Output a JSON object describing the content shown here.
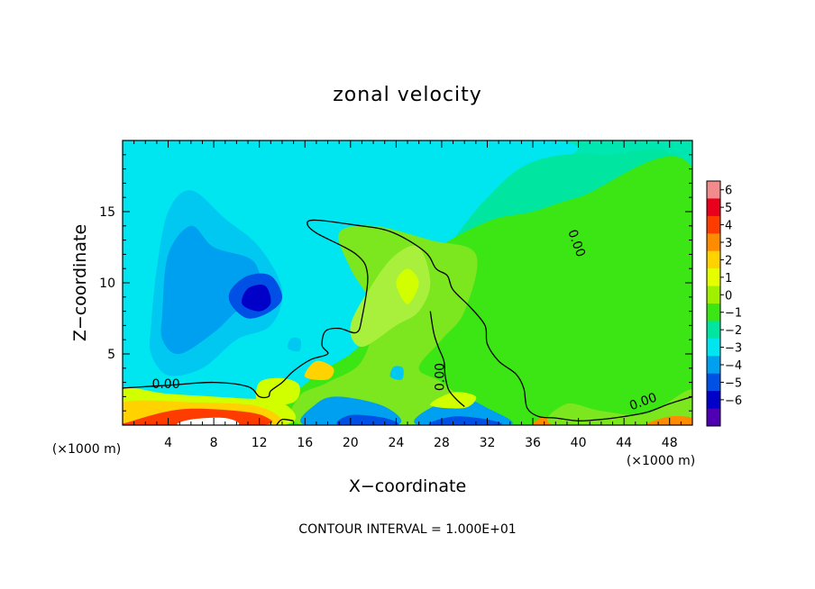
{
  "chart_data": {
    "type": "heatmap",
    "title": "zonal velocity",
    "xlabel": "X−coordinate",
    "ylabel": "Z−coordinate",
    "x_unit_left": "(×1000 m)",
    "x_unit_right": "(×1000 m)",
    "footer": "CONTOUR INTERVAL = 1.000E+01",
    "xlim": [
      0,
      50
    ],
    "ylim": [
      0,
      20
    ],
    "x_ticks": [
      4,
      8,
      12,
      16,
      20,
      24,
      28,
      32,
      36,
      40,
      44,
      48
    ],
    "y_ticks": [
      5,
      10,
      15
    ],
    "contour_label": "0.00",
    "colorbar": {
      "levels": [
        6,
        5,
        4,
        3,
        2,
        1,
        0,
        -1,
        -2,
        -3,
        -4,
        -5,
        -6
      ],
      "colors": [
        "#f28c8c",
        "#e8001c",
        "#ff3c00",
        "#ff8c00",
        "#ffd200",
        "#e6ff00",
        "#a0f000",
        "#3ce614",
        "#00e6a0",
        "#00e6f0",
        "#00a0f0",
        "#0050e6",
        "#0000c8",
        "#5000b4"
      ]
    },
    "color_map": {
      "1.1": "#a8f03c",
      "0.6": "#7ce61e",
      "0.2": "#3ce614",
      "-0.4": "#00e6a0",
      "-1.1": "#00e6f0",
      "-2.1": "#00c8f0",
      "-2.6": "#00a0f0",
      "-3.6": "#0050e6",
      "1.6": "#d2ff00",
      "2.4": "#ffd200",
      "3.3": "#ff8c00",
      "3.9": "#ff3c00",
      "4.6": "#e8001c",
      "6": "#ffffff",
      "-4.6": "#0000c8"
    },
    "regions": [
      {
        "v": -1.1,
        "pts": [
          [
            0,
            2
          ],
          [
            8,
            1
          ],
          [
            12,
            1.5
          ],
          [
            16,
            2
          ],
          [
            20,
            4
          ],
          [
            24,
            6
          ],
          [
            28,
            10
          ],
          [
            30,
            14
          ],
          [
            34,
            17
          ],
          [
            38,
            20
          ],
          [
            0,
            20
          ]
        ]
      },
      {
        "v": -0.4,
        "pts": [
          [
            13,
            0.5
          ],
          [
            20,
            5
          ],
          [
            24,
            8
          ],
          [
            28,
            12
          ],
          [
            32,
            16
          ],
          [
            36,
            18.5
          ],
          [
            42,
            19
          ],
          [
            50,
            17.5
          ],
          [
            50,
            0
          ],
          [
            13,
            0
          ]
        ]
      },
      {
        "v": -2.1,
        "pts": [
          [
            2.5,
            5
          ],
          [
            4,
            3.5
          ],
          [
            7,
            4
          ],
          [
            10,
            6
          ],
          [
            13,
            7
          ],
          [
            14,
            9.5
          ],
          [
            12,
            12.5
          ],
          [
            9,
            14.5
          ],
          [
            6,
            16.5
          ],
          [
            4,
            15
          ],
          [
            3,
            11
          ],
          [
            2.5,
            7
          ]
        ]
      },
      {
        "v": -2.6,
        "pts": [
          [
            3.5,
            6
          ],
          [
            5,
            5
          ],
          [
            8,
            6.5
          ],
          [
            10,
            8
          ],
          [
            12,
            9
          ],
          [
            11.5,
            11.5
          ],
          [
            8,
            12.5
          ],
          [
            6,
            14
          ],
          [
            4,
            12
          ],
          [
            3.5,
            8
          ]
        ]
      },
      {
        "v": -3.6,
        "pts": [
          [
            9.5,
            8.5
          ],
          [
            11,
            7.5
          ],
          [
            13,
            8
          ],
          [
            14,
            9
          ],
          [
            13,
            10.5
          ],
          [
            11,
            10.5
          ],
          [
            9.5,
            9.5
          ]
        ]
      },
      {
        "v": -4.6,
        "pts": [
          [
            10.5,
            8.5
          ],
          [
            12,
            8
          ],
          [
            13,
            8.6
          ],
          [
            12.5,
            9.8
          ],
          [
            11,
            9.6
          ]
        ]
      },
      {
        "v": 0.2,
        "pts": [
          [
            14,
            0
          ],
          [
            15,
            2
          ],
          [
            17,
            3.5
          ],
          [
            20,
            5
          ],
          [
            22,
            6.5
          ],
          [
            25,
            9
          ],
          [
            27,
            12
          ],
          [
            32,
            14.3
          ],
          [
            36,
            15
          ],
          [
            40,
            16
          ],
          [
            50,
            18
          ],
          [
            50,
            0
          ]
        ]
      },
      {
        "v": 0.6,
        "pts": [
          [
            15.5,
            2
          ],
          [
            18,
            3
          ],
          [
            21,
            4.5
          ],
          [
            22,
            8
          ],
          [
            20,
            11
          ],
          [
            19,
            13.5
          ],
          [
            22,
            14
          ],
          [
            27,
            13
          ],
          [
            31,
            12
          ],
          [
            30,
            8
          ],
          [
            28,
            6
          ],
          [
            26,
            4
          ],
          [
            28,
            3
          ],
          [
            31,
            1
          ],
          [
            30,
            0
          ],
          [
            16,
            0
          ]
        ]
      },
      {
        "v": 1.1,
        "pts": [
          [
            20,
            7
          ],
          [
            22,
            10
          ],
          [
            24,
            12
          ],
          [
            26,
            12.5
          ],
          [
            27,
            10
          ],
          [
            26,
            8
          ],
          [
            24,
            7
          ],
          [
            21,
            5.5
          ]
        ]
      },
      {
        "v": 1.6,
        "pts": [
          [
            25,
            8.5
          ],
          [
            26,
            10
          ],
          [
            25,
            11
          ],
          [
            24,
            10
          ]
        ]
      },
      {
        "v": 2.4,
        "pts": [
          [
            16,
            3.4
          ],
          [
            18,
            3.2
          ],
          [
            18.5,
            4
          ],
          [
            17,
            4.5
          ]
        ]
      },
      {
        "v": 1.6,
        "pts": [
          [
            12,
            3
          ],
          [
            14,
            3.3
          ],
          [
            15.5,
            2.8
          ],
          [
            15,
            1.6
          ],
          [
            12,
            1.5
          ]
        ]
      },
      {
        "v": 1.6,
        "pts": [
          [
            0,
            0
          ],
          [
            0,
            2.5
          ],
          [
            4,
            2.2
          ],
          [
            10,
            1.9
          ],
          [
            14,
            1.6
          ],
          [
            14,
            0
          ]
        ]
      },
      {
        "v": 2.4,
        "pts": [
          [
            0,
            0
          ],
          [
            0,
            1.6
          ],
          [
            6,
            1.6
          ],
          [
            12,
            1.3
          ],
          [
            13,
            0
          ]
        ]
      },
      {
        "v": 3.9,
        "pts": [
          [
            0.5,
            0.2
          ],
          [
            5,
            1.1
          ],
          [
            10,
            1
          ],
          [
            12.5,
            0.6
          ],
          [
            12,
            0
          ],
          [
            0.5,
            0
          ]
        ]
      },
      {
        "v": 6,
        "pts": [
          [
            5,
            0
          ],
          [
            6,
            0.4
          ],
          [
            9,
            0.5
          ],
          [
            10,
            0
          ]
        ]
      },
      {
        "v": -2.6,
        "pts": [
          [
            16,
            0
          ],
          [
            17,
            1.5
          ],
          [
            19,
            2
          ],
          [
            23,
            1.3
          ],
          [
            24,
            0
          ]
        ]
      },
      {
        "v": -3.6,
        "pts": [
          [
            19,
            0
          ],
          [
            20,
            0.7
          ],
          [
            23,
            0.5
          ],
          [
            24,
            0
          ]
        ]
      },
      {
        "v": -2.6,
        "pts": [
          [
            26,
            0
          ],
          [
            27,
            1.2
          ],
          [
            30,
            1.8
          ],
          [
            32,
            1.2
          ],
          [
            34,
            0
          ]
        ]
      },
      {
        "v": -3.6,
        "pts": [
          [
            27,
            0
          ],
          [
            29,
            0.6
          ],
          [
            32,
            0.4
          ],
          [
            33,
            0
          ]
        ]
      },
      {
        "v": 1.6,
        "pts": [
          [
            27,
            1.4
          ],
          [
            29,
            2.3
          ],
          [
            31,
            2
          ],
          [
            30,
            1.2
          ]
        ]
      },
      {
        "v": 3.3,
        "pts": [
          [
            36,
            0
          ],
          [
            37,
            0.6
          ],
          [
            38,
            0
          ]
        ]
      },
      {
        "v": 0.6,
        "pts": [
          [
            38,
            0
          ],
          [
            39,
            1.5
          ],
          [
            42,
            1
          ],
          [
            46,
            0.8
          ],
          [
            50,
            2.5
          ],
          [
            50,
            0
          ]
        ]
      },
      {
        "v": 3.3,
        "pts": [
          [
            46,
            0
          ],
          [
            48,
            0.6
          ],
          [
            50,
            0.5
          ],
          [
            50,
            0
          ]
        ]
      },
      {
        "v": -2.1,
        "pts": [
          [
            23.5,
            3.4
          ],
          [
            24.5,
            3.2
          ],
          [
            24.6,
            4
          ],
          [
            23.8,
            4.1
          ]
        ]
      },
      {
        "v": -2.1,
        "pts": [
          [
            14.5,
            5.4
          ],
          [
            15.5,
            5.2
          ],
          [
            15.6,
            6
          ],
          [
            14.8,
            6.1
          ]
        ]
      }
    ],
    "contours": [
      [
        [
          0,
          2.6
        ],
        [
          4,
          2.8
        ],
        [
          8,
          3
        ],
        [
          11,
          2.7
        ],
        [
          12,
          2
        ],
        [
          12.8,
          2
        ],
        [
          13,
          2.4
        ],
        [
          14,
          3
        ],
        [
          15,
          3.8
        ],
        [
          16.5,
          4.6
        ],
        [
          18,
          5
        ],
        [
          17.5,
          5.6
        ],
        [
          17.8,
          6.6
        ],
        [
          19,
          6.8
        ],
        [
          20.5,
          6.5
        ],
        [
          21,
          7.5
        ],
        [
          21.5,
          10.5
        ],
        [
          20.5,
          12
        ],
        [
          17,
          13.5
        ],
        [
          16.2,
          14.2
        ],
        [
          17,
          14.4
        ],
        [
          20,
          14.1
        ],
        [
          23.5,
          13.6
        ],
        [
          26.5,
          12.2
        ],
        [
          27.5,
          11
        ],
        [
          28.5,
          10.5
        ],
        [
          29,
          9.5
        ],
        [
          30.5,
          8.3
        ],
        [
          31.8,
          7
        ],
        [
          32,
          5.7
        ],
        [
          33,
          4.5
        ],
        [
          34.5,
          3.6
        ],
        [
          35.2,
          2.6
        ],
        [
          35.5,
          1.2
        ],
        [
          36.5,
          0.6
        ],
        [
          38,
          0.5
        ],
        [
          40,
          0.3
        ],
        [
          42,
          0.4
        ],
        [
          44,
          0.6
        ],
        [
          46,
          0.9
        ],
        [
          48,
          1.5
        ],
        [
          50,
          2
        ]
      ],
      [
        [
          27,
          8
        ],
        [
          27.3,
          6.5
        ],
        [
          27.7,
          5.5
        ],
        [
          28.2,
          4.5
        ],
        [
          28.3,
          3.5
        ],
        [
          28.6,
          2.5
        ],
        [
          29.3,
          1.8
        ],
        [
          30,
          1.3
        ]
      ],
      [
        [
          13.5,
          0
        ],
        [
          14,
          0.4
        ],
        [
          15,
          0.3
        ]
      ]
    ],
    "contour_labels": [
      [
        3.8,
        2.9
      ],
      [
        28.2,
        3.7
      ],
      [
        39.5,
        13
      ],
      [
        45.8,
        1.7
      ]
    ]
  }
}
